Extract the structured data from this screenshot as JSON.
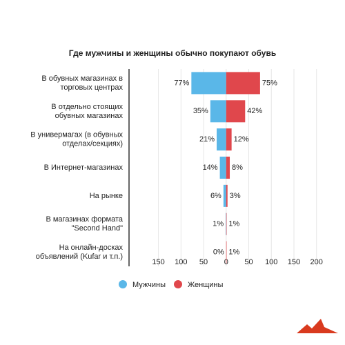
{
  "chart_data": {
    "type": "butterfly",
    "title": "Где мужчины и женщины обычно покупают обувь",
    "categories": [
      "В обувных магазинах в\nторговых центрах",
      "В отдельно стоящих\nобувных магазинах",
      "В универмагах (в обувных\nотделах/секциях)",
      "В Интернет-магазинах",
      "На рынке",
      "В магазинах формата\n\"Second Hand\"",
      "На онлайн-досках\nобъявлений (Kufar и т.п.)"
    ],
    "series": [
      {
        "name": "Мужчины",
        "color": "#5ab7e8",
        "side": "left",
        "values": [
          77,
          35,
          21,
          14,
          6,
          1,
          0
        ],
        "value_labels": [
          "77%",
          "35%",
          "21%",
          "14%",
          "6%",
          "1%",
          "0%"
        ]
      },
      {
        "name": "Женщины",
        "color": "#e0474c",
        "side": "right",
        "values": [
          75,
          42,
          12,
          8,
          3,
          1,
          1
        ],
        "value_labels": [
          "75%",
          "42%",
          "12%",
          "8%",
          "3%",
          "1%",
          "1%"
        ]
      }
    ],
    "xlim": [
      -215,
      205
    ],
    "xticks": [
      {
        "value": -150,
        "label": "150"
      },
      {
        "value": -100,
        "label": "100"
      },
      {
        "value": -50,
        "label": "50"
      },
      0,
      50,
      100,
      150,
      200
    ],
    "grid": true
  }
}
